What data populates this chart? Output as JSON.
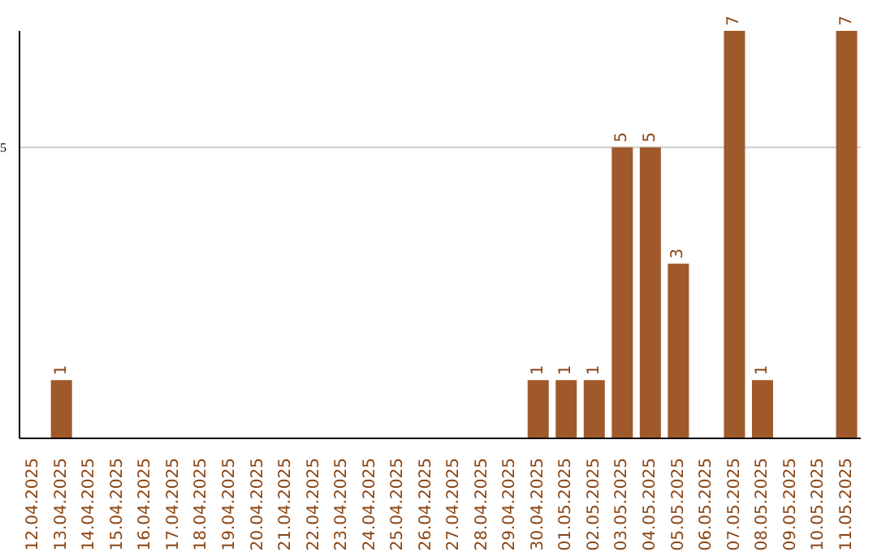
{
  "chart_data": {
    "type": "bar",
    "categories": [
      "12.04.2025",
      "13.04.2025",
      "14.04.2025",
      "15.04.2025",
      "16.04.2025",
      "17.04.2025",
      "18.04.2025",
      "19.04.2025",
      "20.04.2025",
      "21.04.2025",
      "22.04.2025",
      "23.04.2025",
      "24.04.2025",
      "25.04.2025",
      "26.04.2025",
      "27.04.2025",
      "28.04.2025",
      "29.04.2025",
      "30.04.2025",
      "01.05.2025",
      "02.05.2025",
      "03.05.2025",
      "04.05.2025",
      "05.05.2025",
      "06.05.2025",
      "07.05.2025",
      "08.05.2025",
      "09.05.2025",
      "10.05.2025",
      "11.05.2025"
    ],
    "values": [
      0,
      1,
      0,
      0,
      0,
      0,
      0,
      0,
      0,
      0,
      0,
      0,
      0,
      0,
      0,
      0,
      0,
      0,
      1,
      1,
      1,
      5,
      5,
      3,
      0,
      7,
      1,
      0,
      0,
      7
    ],
    "value_labels": [
      null,
      "1",
      null,
      null,
      null,
      null,
      null,
      null,
      null,
      null,
      null,
      null,
      null,
      null,
      null,
      null,
      null,
      null,
      "1",
      "1",
      "1",
      "5",
      "5",
      "3",
      null,
      "7",
      "1",
      null,
      null,
      "7"
    ],
    "color": "#a0592a",
    "ylim": [
      0,
      7
    ],
    "yticks": [
      5
    ],
    "grid": "y"
  }
}
